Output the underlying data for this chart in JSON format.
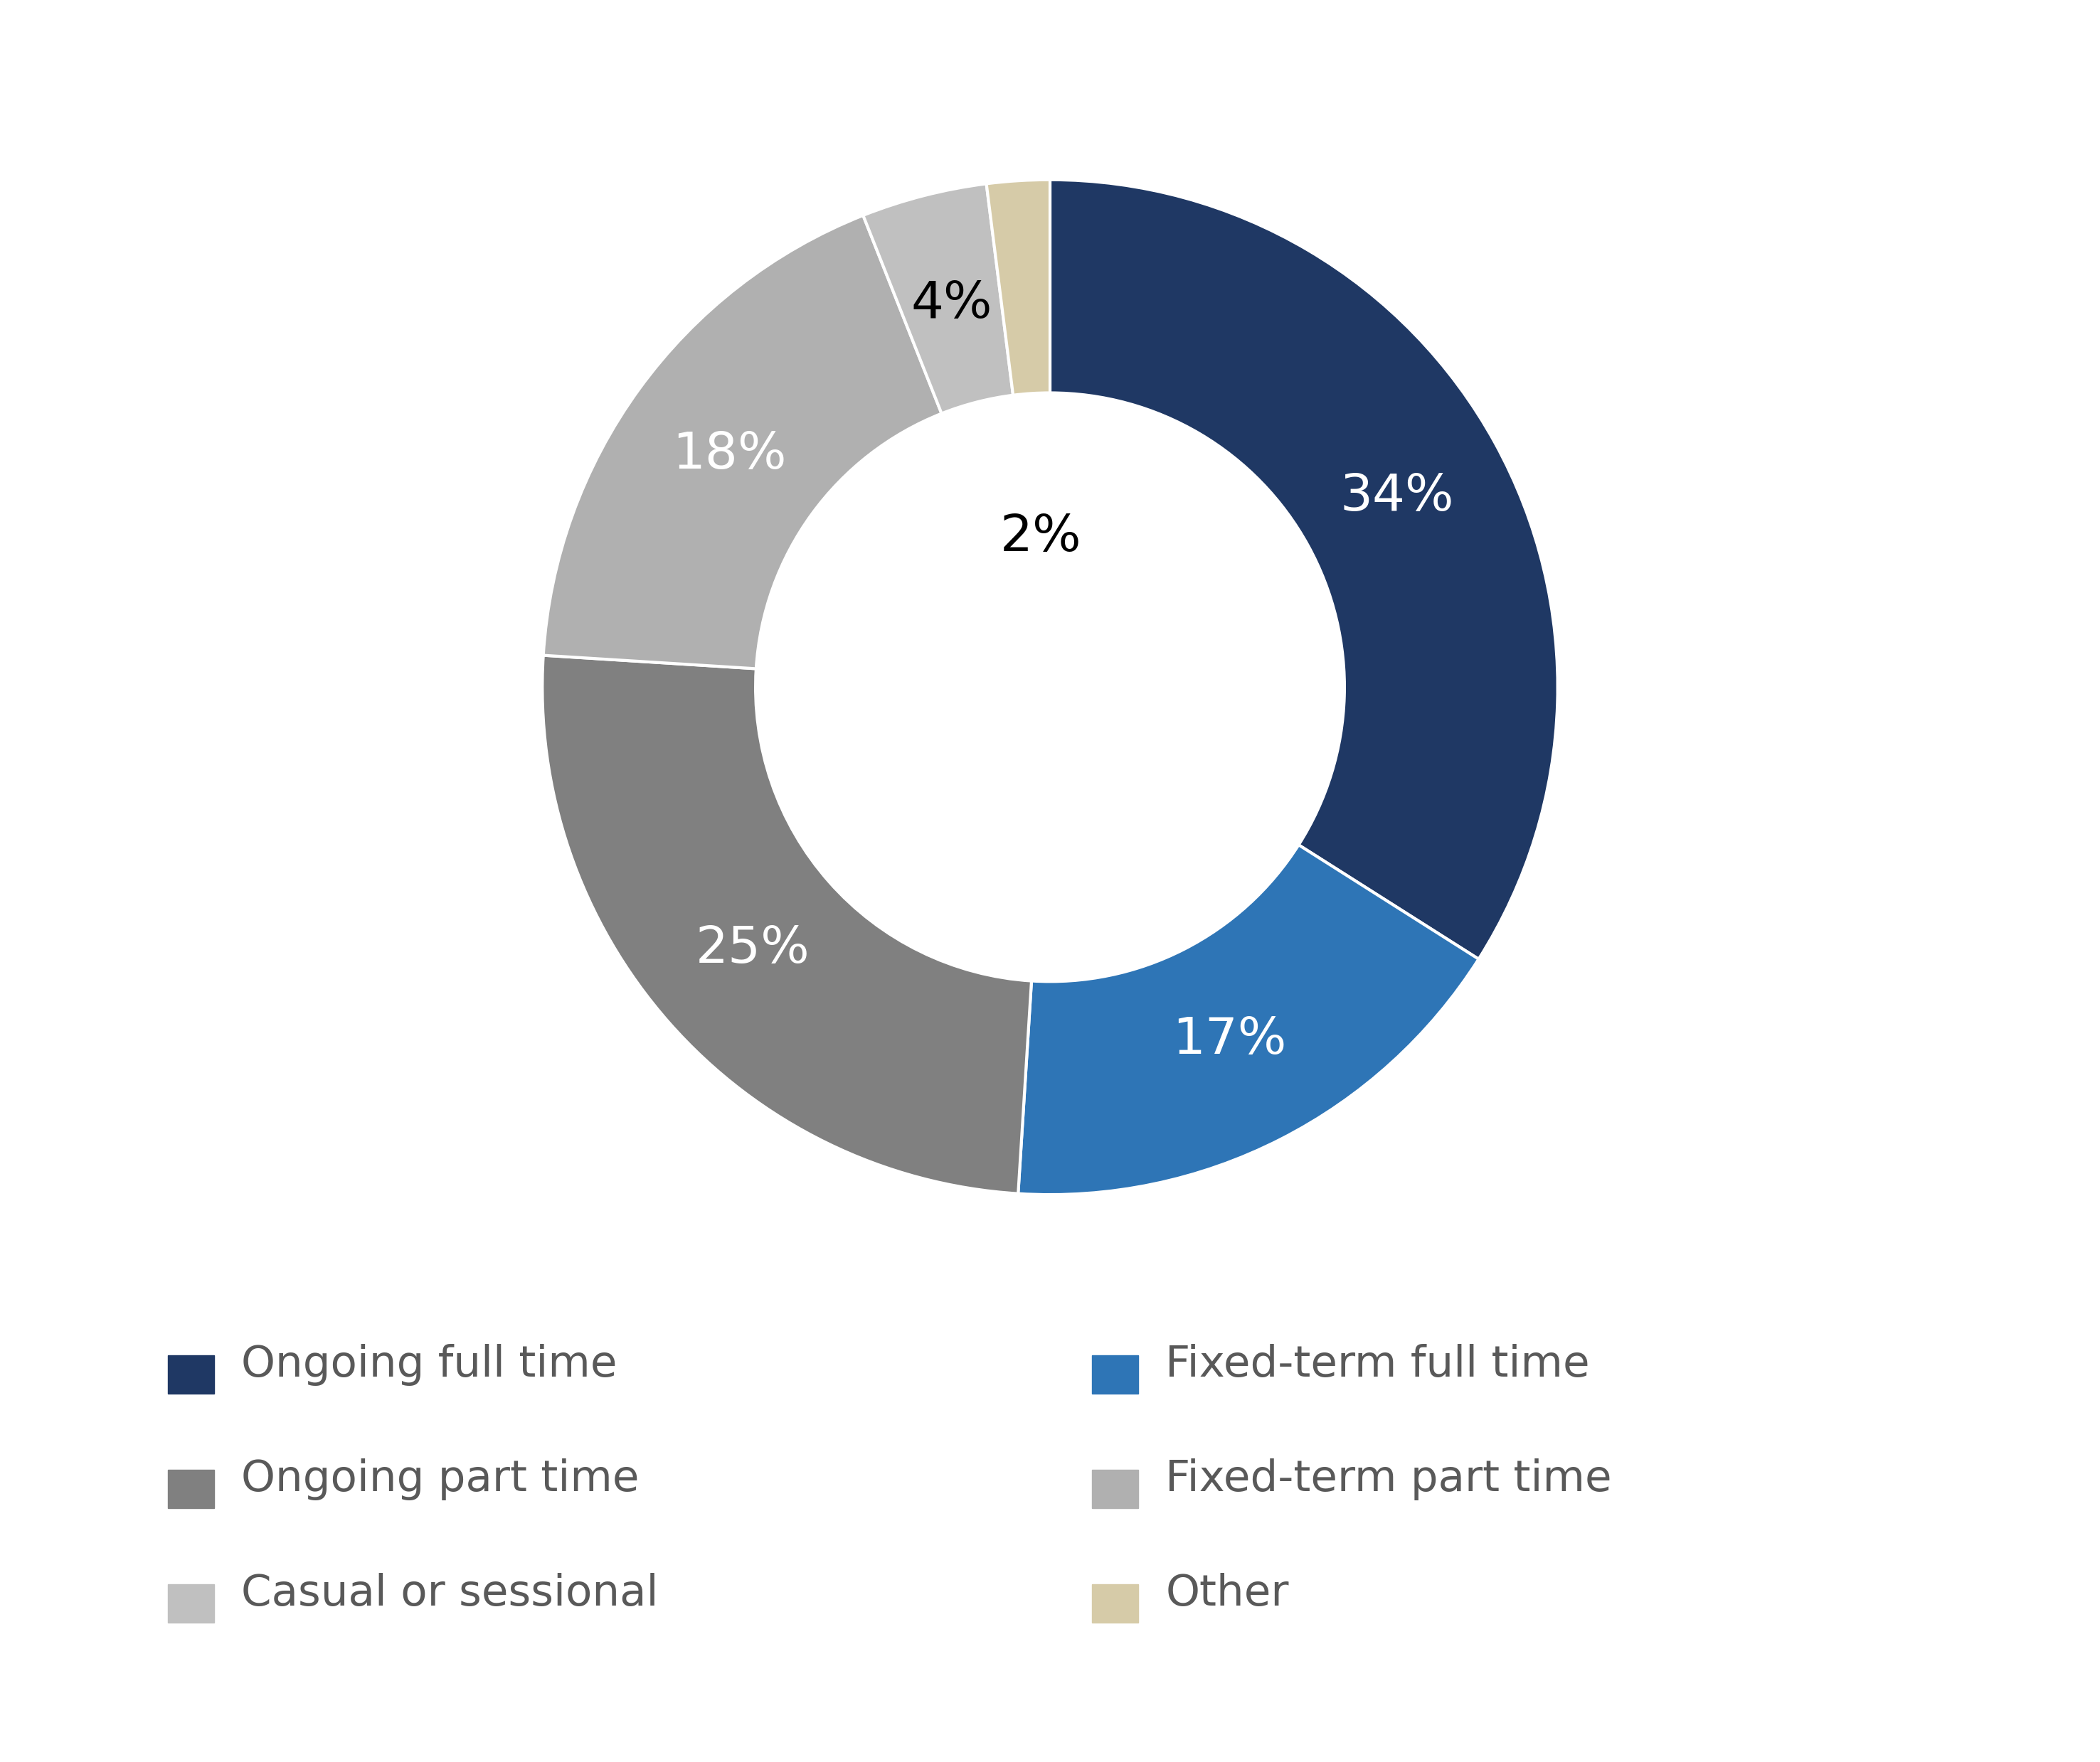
{
  "labels": [
    "Ongoing full time",
    "Fixed-term full time",
    "Ongoing part time",
    "Fixed-term part time",
    "Casual or sessional",
    "Other"
  ],
  "values": [
    34,
    17,
    25,
    18,
    4,
    2
  ],
  "colors": [
    "#1f3864",
    "#2e75b6",
    "#808080",
    "#b0b0b0",
    "#c0c0c0",
    "#d6cba8"
  ],
  "pct_labels": [
    "34%",
    "17%",
    "25%",
    "18%",
    "4%",
    "2%"
  ],
  "pct_colors": [
    "white",
    "white",
    "white",
    "white",
    "black",
    "black"
  ],
  "legend_labels_col1": [
    "Ongoing full time",
    "Ongoing part time",
    "Casual or sessional"
  ],
  "legend_labels_col2": [
    "Fixed-term full time",
    "Fixed-term part time",
    "Other"
  ],
  "legend_colors_col1": [
    "#1f3864",
    "#808080",
    "#c0c0c0"
  ],
  "legend_colors_col2": [
    "#2e75b6",
    "#b0b0b0",
    "#d6cba8"
  ],
  "background_color": "#ffffff",
  "wedge_edge_color": "#ffffff",
  "label_fontsize": 52,
  "legend_fontsize": 44,
  "donut_width": 0.42
}
